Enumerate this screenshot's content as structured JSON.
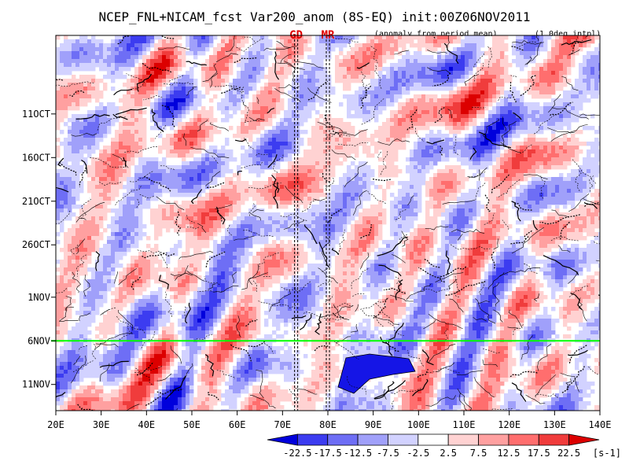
{
  "chart_data": {
    "type": "heatmap",
    "title": "NCEP_FNL+NICAM_fcst Var200_anom (8S-EQ) init:00Z06NOV2011",
    "subtitle_left": "(anomaly from period mean)",
    "subtitle_right": "(1.0deg intpl)",
    "region_markers": [
      {
        "label": "GD",
        "lon": 73
      },
      {
        "label": "MR",
        "lon": 80
      }
    ],
    "x_axis": {
      "range": [
        20,
        140
      ],
      "ticks": [
        20,
        30,
        40,
        50,
        60,
        70,
        80,
        90,
        100,
        110,
        120,
        130,
        140
      ],
      "tick_labels": [
        "20E",
        "30E",
        "40E",
        "50E",
        "60E",
        "70E",
        "80E",
        "90E",
        "100E",
        "110E",
        "120E",
        "130E",
        "140E"
      ]
    },
    "y_axis": {
      "order": "time increasing downward",
      "range": [
        "2OCT2011",
        "14NOV2011"
      ],
      "ticks": [
        "11OCT",
        "16OCT",
        "21OCT",
        "26OCT",
        "1NOV",
        "6NOV",
        "11NOV"
      ],
      "tick_labels": [
        "11OCT",
        "16OCT",
        "21OCT",
        "26OCT",
        "1NOV",
        "6NOV",
        "11NOV"
      ]
    },
    "init_line": {
      "date": "6NOV2011",
      "color": "#00ff00"
    },
    "colorbar": {
      "levels": [
        "-22.5",
        "-17.5",
        "-12.5",
        "-7.5",
        "-2.5",
        "2.5",
        "7.5",
        "12.5",
        "17.5",
        "22.5"
      ],
      "colors": [
        "#0000dc",
        "#3c3cf0",
        "#6e6ef5",
        "#a0a0fa",
        "#d2d2ff",
        "#ffffff",
        "#ffd2d2",
        "#ffa0a0",
        "#ff6e6e",
        "#f03c3c",
        "#dc0000"
      ],
      "unit": "[s-1]"
    }
  }
}
